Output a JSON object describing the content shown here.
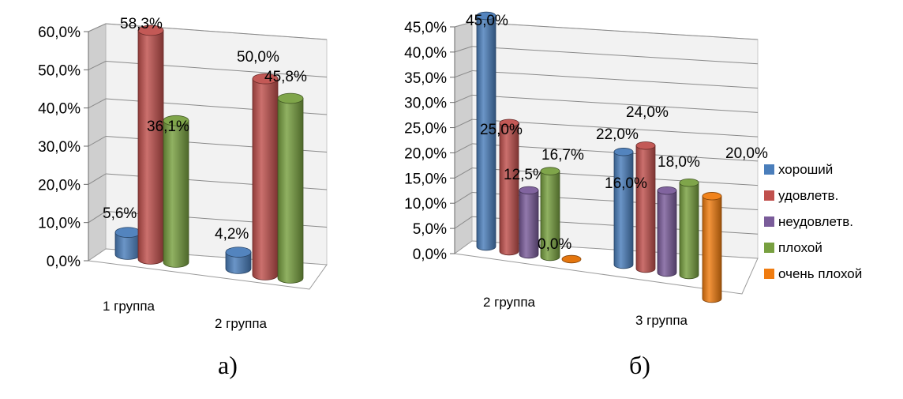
{
  "colors": {
    "хороший": "#4a7ebb",
    "удовлетв.": "#c0504d",
    "неудовлетв.": "#7a5c9a",
    "плохой": "#78a040",
    "очень плохой": "#f07c10"
  },
  "legend": [
    "хороший",
    "удовлетв.",
    "неудовлетв.",
    "плохой",
    "очень плохой"
  ],
  "chart_data": [
    {
      "type": "bar",
      "panel_label": "а)",
      "ylim": [
        0,
        60
      ],
      "y_ticks": [
        "0,0%",
        "10,0%",
        "20,0%",
        "30,0%",
        "40,0%",
        "50,0%",
        "60,0%"
      ],
      "categories": [
        "1 группа",
        "2 группа"
      ],
      "series": [
        {
          "name": "хороший",
          "values": [
            5.6,
            4.2
          ],
          "labels": [
            "5,6%",
            "4,2%"
          ]
        },
        {
          "name": "удовлетв.",
          "values": [
            58.3,
            50.0
          ],
          "labels": [
            "58,3%",
            "50,0%"
          ]
        },
        {
          "name": "плохой",
          "values": [
            36.1,
            45.8
          ],
          "labels": [
            "36,1%",
            "45,8%"
          ]
        }
      ],
      "grid": true
    },
    {
      "type": "bar",
      "panel_label": "б)",
      "ylim": [
        0,
        45
      ],
      "y_ticks": [
        "0,0%",
        "5,0%",
        "10,0%",
        "15,0%",
        "20,0%",
        "25,0%",
        "30,0%",
        "35,0%",
        "40,0%",
        "45,0%"
      ],
      "categories": [
        "2 группа",
        "3 группа"
      ],
      "series": [
        {
          "name": "хороший",
          "values": [
            45.0,
            22.0
          ],
          "labels": [
            "45,0%",
            "22,0%"
          ]
        },
        {
          "name": "удовлетв.",
          "values": [
            25.0,
            24.0
          ],
          "labels": [
            "25,0%",
            "24,0%"
          ]
        },
        {
          "name": "неудовлетв.",
          "values": [
            12.5,
            16.0
          ],
          "labels": [
            "12,5%",
            "16,0%"
          ]
        },
        {
          "name": "плохой",
          "values": [
            16.7,
            18.0
          ],
          "labels": [
            "16,7%",
            "18,0%"
          ]
        },
        {
          "name": "очень плохой",
          "values": [
            0.0,
            20.0
          ],
          "labels": [
            "0,0%",
            "20,0%"
          ]
        }
      ],
      "grid": true,
      "legend_position": "right"
    }
  ]
}
